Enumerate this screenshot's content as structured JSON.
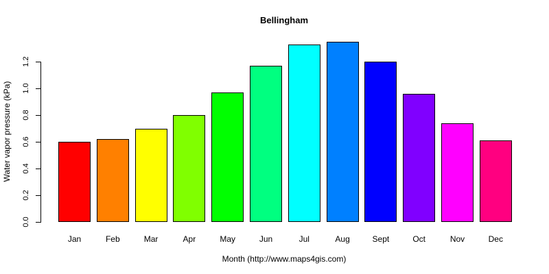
{
  "chart_data": {
    "type": "bar",
    "title": "Bellingham",
    "xlabel": "Month (http://www.maps4gis.com)",
    "ylabel": "Water vapor pressure (kPa)",
    "categories": [
      "Jan",
      "Feb",
      "Mar",
      "Apr",
      "May",
      "Jun",
      "Jul",
      "Aug",
      "Sept",
      "Oct",
      "Nov",
      "Dec"
    ],
    "values": [
      0.6,
      0.62,
      0.7,
      0.8,
      0.97,
      1.17,
      1.33,
      1.35,
      1.2,
      0.96,
      0.74,
      0.61
    ],
    "colors": [
      "#FF0000",
      "#FF8000",
      "#FFFF00",
      "#80FF00",
      "#00FF00",
      "#00FF80",
      "#00FFFF",
      "#0080FF",
      "#0000FF",
      "#8000FF",
      "#FF00FF",
      "#FF0080"
    ],
    "yticks": [
      "0.0",
      "0.2",
      "0.4",
      "0.6",
      "0.8",
      "1.0",
      "1.2"
    ],
    "ylim": [
      0,
      1.2
    ],
    "grid": false,
    "legend": null
  }
}
